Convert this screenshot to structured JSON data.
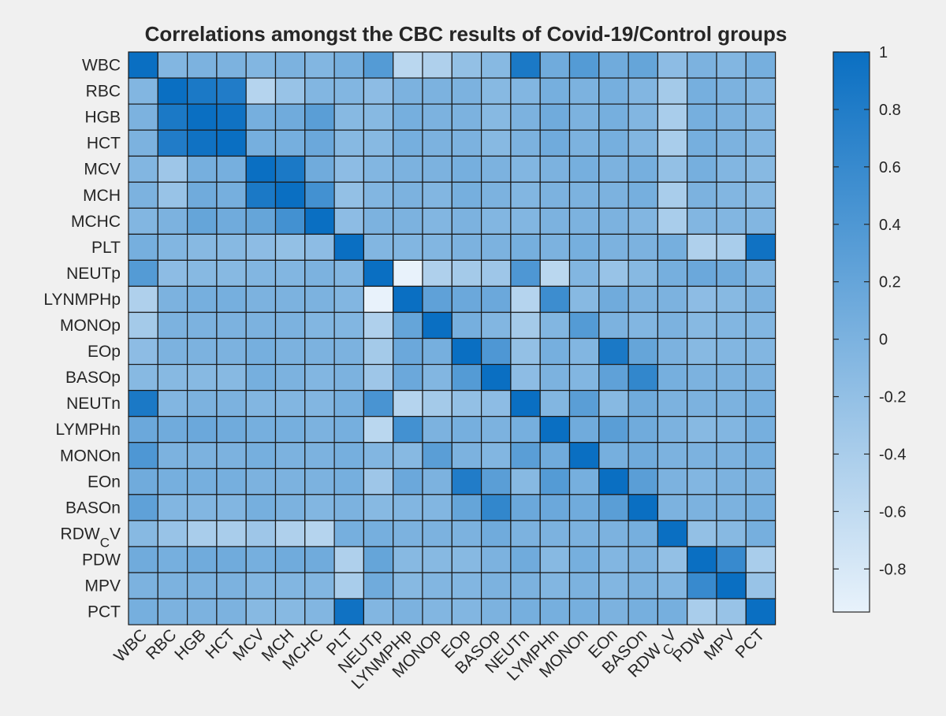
{
  "chart_data": {
    "type": "heatmap",
    "title": "Correlations amongst the CBC results of Covid-19/Control groups",
    "row_labels": [
      "WBC",
      "RBC",
      "HGB",
      "HCT",
      "MCV",
      "MCH",
      "MCHC",
      "PLT",
      "NEUTp",
      "LYNMPHp",
      "MONOp",
      "EOp",
      "BASOp",
      "NEUTn",
      "LYMPHn",
      "MONOn",
      "EOn",
      "BASOn",
      "RDW_CV",
      "PDW",
      "MPV",
      "PCT"
    ],
    "col_labels": [
      "WBC",
      "RBC",
      "HGB",
      "HCT",
      "MCV",
      "MCH",
      "MCHC",
      "PLT",
      "NEUTp",
      "LYNMPHp",
      "MONOp",
      "EOp",
      "BASOp",
      "NEUTn",
      "LYMPHn",
      "MONOn",
      "EOn",
      "BASOn",
      "RDW_CV",
      "PDW",
      "MPV",
      "PCT"
    ],
    "values": [
      [
        1.0,
        -0.05,
        0.0,
        0.0,
        -0.05,
        0.0,
        -0.05,
        0.05,
        0.35,
        -0.55,
        -0.45,
        -0.2,
        -0.1,
        0.85,
        0.1,
        0.35,
        0.1,
        0.2,
        -0.15,
        0.0,
        -0.05,
        0.05
      ],
      [
        -0.05,
        1.0,
        0.85,
        0.8,
        -0.5,
        -0.25,
        -0.05,
        -0.05,
        -0.15,
        0.0,
        0.0,
        0.0,
        -0.1,
        -0.05,
        0.05,
        0.0,
        0.05,
        -0.05,
        -0.35,
        0.05,
        0.0,
        -0.05
      ],
      [
        0.0,
        0.85,
        1.0,
        0.95,
        0.05,
        0.1,
        0.3,
        -0.1,
        -0.1,
        0.05,
        0.0,
        0.0,
        -0.1,
        0.0,
        0.1,
        0.0,
        0.05,
        -0.05,
        -0.4,
        0.05,
        0.0,
        -0.05
      ],
      [
        0.0,
        0.8,
        0.95,
        1.0,
        0.05,
        0.05,
        0.15,
        -0.1,
        -0.1,
        0.05,
        0.0,
        0.0,
        -0.1,
        0.0,
        0.1,
        0.0,
        0.05,
        -0.05,
        -0.4,
        0.05,
        0.0,
        -0.05
      ],
      [
        -0.05,
        -0.3,
        0.05,
        0.05,
        1.0,
        0.85,
        0.1,
        -0.15,
        -0.05,
        0.0,
        0.0,
        0.05,
        0.0,
        -0.05,
        0.0,
        0.05,
        0.0,
        0.05,
        -0.2,
        0.05,
        -0.05,
        -0.1
      ],
      [
        0.0,
        -0.25,
        0.1,
        0.05,
        0.85,
        1.0,
        0.5,
        -0.2,
        -0.05,
        0.0,
        -0.05,
        0.05,
        0.0,
        -0.05,
        0.0,
        0.0,
        0.0,
        0.05,
        -0.4,
        0.0,
        -0.05,
        -0.1
      ],
      [
        -0.05,
        0.0,
        0.2,
        0.1,
        0.2,
        0.5,
        1.0,
        -0.15,
        0.0,
        0.0,
        -0.05,
        0.0,
        -0.05,
        -0.05,
        0.0,
        0.0,
        0.0,
        -0.05,
        -0.4,
        -0.05,
        -0.05,
        -0.05
      ],
      [
        0.05,
        -0.05,
        -0.1,
        -0.1,
        -0.15,
        -0.2,
        -0.15,
        1.0,
        -0.05,
        -0.05,
        -0.05,
        0.0,
        0.0,
        0.05,
        0.0,
        0.05,
        0.0,
        0.0,
        0.05,
        -0.45,
        -0.4,
        0.95
      ],
      [
        0.35,
        -0.15,
        -0.1,
        -0.1,
        -0.05,
        -0.05,
        0.0,
        -0.05,
        1.0,
        -0.95,
        -0.45,
        -0.35,
        -0.3,
        0.4,
        -0.55,
        -0.05,
        -0.25,
        -0.1,
        0.05,
        0.15,
        0.1,
        -0.05
      ],
      [
        -0.45,
        0.0,
        0.05,
        0.05,
        0.0,
        0.0,
        0.0,
        -0.05,
        -0.95,
        1.0,
        0.25,
        0.15,
        0.15,
        -0.5,
        0.55,
        -0.1,
        0.1,
        0.0,
        0.0,
        -0.15,
        -0.1,
        0.0
      ],
      [
        -0.35,
        0.0,
        0.0,
        0.0,
        0.0,
        0.0,
        -0.05,
        -0.05,
        -0.45,
        0.2,
        1.0,
        0.05,
        -0.05,
        -0.35,
        -0.05,
        0.35,
        0.0,
        -0.05,
        0.0,
        -0.1,
        -0.05,
        -0.05
      ],
      [
        -0.15,
        0.0,
        0.0,
        0.0,
        0.05,
        0.0,
        0.0,
        0.0,
        -0.35,
        0.15,
        0.05,
        1.0,
        0.4,
        -0.2,
        0.05,
        -0.05,
        0.85,
        0.2,
        0.0,
        -0.1,
        -0.05,
        -0.05
      ],
      [
        -0.1,
        -0.1,
        -0.1,
        -0.1,
        0.05,
        0.0,
        -0.05,
        0.0,
        -0.3,
        0.15,
        -0.05,
        0.35,
        1.0,
        -0.15,
        0.0,
        -0.05,
        0.25,
        0.65,
        0.05,
        0.0,
        0.0,
        0.0
      ],
      [
        0.85,
        -0.05,
        0.0,
        0.0,
        -0.05,
        -0.05,
        -0.05,
        0.05,
        0.45,
        -0.5,
        -0.35,
        -0.2,
        -0.15,
        1.0,
        -0.05,
        0.3,
        -0.1,
        0.1,
        0.0,
        0.0,
        0.0,
        0.05
      ],
      [
        0.15,
        0.1,
        0.15,
        0.1,
        0.05,
        0.05,
        0.0,
        0.05,
        -0.55,
        0.5,
        0.0,
        0.05,
        0.0,
        0.05,
        1.0,
        0.1,
        0.3,
        0.1,
        0.0,
        -0.1,
        -0.05,
        0.05
      ],
      [
        0.4,
        0.0,
        0.0,
        0.0,
        0.05,
        0.0,
        0.0,
        0.05,
        -0.05,
        -0.1,
        0.3,
        0.0,
        -0.05,
        0.3,
        0.1,
        1.0,
        0.05,
        0.1,
        0.0,
        0.0,
        0.0,
        0.05
      ],
      [
        0.1,
        0.05,
        0.05,
        0.05,
        0.0,
        0.0,
        0.0,
        0.05,
        -0.3,
        0.15,
        0.0,
        0.8,
        0.3,
        -0.1,
        0.35,
        0.05,
        1.0,
        0.3,
        0.0,
        -0.05,
        0.0,
        0.0
      ],
      [
        0.25,
        -0.05,
        -0.05,
        -0.05,
        0.05,
        0.0,
        -0.05,
        0.0,
        -0.1,
        -0.05,
        -0.05,
        0.2,
        0.65,
        0.15,
        0.15,
        0.1,
        0.3,
        1.0,
        0.0,
        0.0,
        0.0,
        0.05
      ],
      [
        -0.1,
        -0.25,
        -0.4,
        -0.4,
        -0.3,
        -0.45,
        -0.5,
        0.05,
        0.05,
        0.0,
        0.0,
        0.0,
        0.1,
        0.0,
        0.0,
        0.0,
        0.0,
        0.05,
        1.0,
        -0.2,
        -0.1,
        0.05
      ],
      [
        0.1,
        0.05,
        0.1,
        0.1,
        0.05,
        0.1,
        0.1,
        -0.45,
        0.2,
        -0.1,
        -0.1,
        -0.1,
        0.0,
        0.1,
        -0.1,
        0.05,
        -0.05,
        0.0,
        -0.2,
        1.0,
        0.6,
        -0.4
      ],
      [
        0.0,
        0.0,
        0.0,
        0.0,
        -0.05,
        -0.05,
        -0.05,
        -0.4,
        0.1,
        -0.1,
        -0.05,
        -0.05,
        0.0,
        0.0,
        -0.05,
        0.0,
        -0.05,
        0.0,
        -0.05,
        0.6,
        1.0,
        -0.25
      ],
      [
        0.05,
        0.0,
        0.0,
        0.0,
        -0.1,
        -0.1,
        -0.05,
        0.95,
        -0.05,
        0.0,
        -0.05,
        -0.05,
        0.0,
        0.05,
        0.05,
        0.05,
        0.0,
        0.05,
        0.05,
        -0.4,
        -0.25,
        1.0
      ]
    ],
    "colorbar": {
      "ticks": [
        1,
        0.8,
        0.6,
        0.4,
        0.2,
        0,
        -0.2,
        -0.4,
        -0.6,
        -0.8
      ],
      "range": [
        -0.95,
        1.0
      ],
      "color_low": "#e8f2fb",
      "color_high": "#0a6fc2"
    },
    "grid": true
  }
}
